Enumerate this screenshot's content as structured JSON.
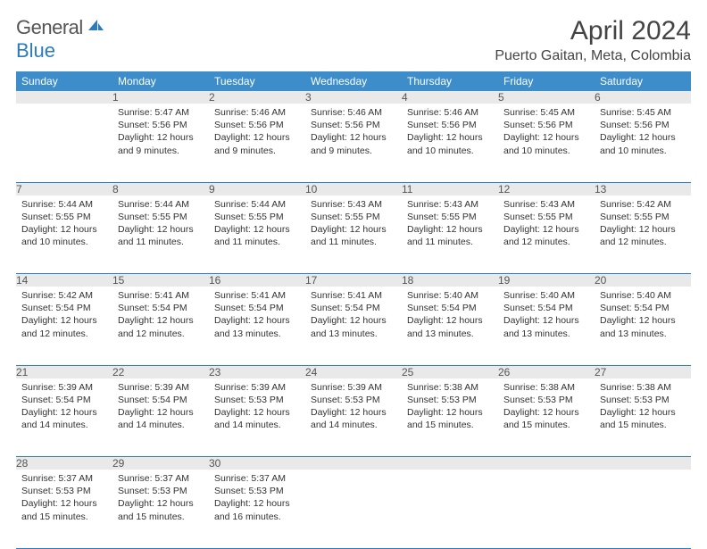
{
  "brand": {
    "name1": "General",
    "name2": "Blue"
  },
  "title": "April 2024",
  "location": "Puerto Gaitan, Meta, Colombia",
  "colors": {
    "header_bg": "#3c8dc9",
    "header_text": "#ffffff",
    "daynum_bg": "#e9e9e9",
    "border": "#2b7bbf",
    "brand_gray": "#555555",
    "brand_blue": "#2b7bbf"
  },
  "weekdays": [
    "Sunday",
    "Monday",
    "Tuesday",
    "Wednesday",
    "Thursday",
    "Friday",
    "Saturday"
  ],
  "weeks": [
    [
      {
        "num": "",
        "sunrise": "",
        "sunset": "",
        "daylight": ""
      },
      {
        "num": "1",
        "sunrise": "Sunrise: 5:47 AM",
        "sunset": "Sunset: 5:56 PM",
        "daylight": "Daylight: 12 hours and 9 minutes."
      },
      {
        "num": "2",
        "sunrise": "Sunrise: 5:46 AM",
        "sunset": "Sunset: 5:56 PM",
        "daylight": "Daylight: 12 hours and 9 minutes."
      },
      {
        "num": "3",
        "sunrise": "Sunrise: 5:46 AM",
        "sunset": "Sunset: 5:56 PM",
        "daylight": "Daylight: 12 hours and 9 minutes."
      },
      {
        "num": "4",
        "sunrise": "Sunrise: 5:46 AM",
        "sunset": "Sunset: 5:56 PM",
        "daylight": "Daylight: 12 hours and 10 minutes."
      },
      {
        "num": "5",
        "sunrise": "Sunrise: 5:45 AM",
        "sunset": "Sunset: 5:56 PM",
        "daylight": "Daylight: 12 hours and 10 minutes."
      },
      {
        "num": "6",
        "sunrise": "Sunrise: 5:45 AM",
        "sunset": "Sunset: 5:56 PM",
        "daylight": "Daylight: 12 hours and 10 minutes."
      }
    ],
    [
      {
        "num": "7",
        "sunrise": "Sunrise: 5:44 AM",
        "sunset": "Sunset: 5:55 PM",
        "daylight": "Daylight: 12 hours and 10 minutes."
      },
      {
        "num": "8",
        "sunrise": "Sunrise: 5:44 AM",
        "sunset": "Sunset: 5:55 PM",
        "daylight": "Daylight: 12 hours and 11 minutes."
      },
      {
        "num": "9",
        "sunrise": "Sunrise: 5:44 AM",
        "sunset": "Sunset: 5:55 PM",
        "daylight": "Daylight: 12 hours and 11 minutes."
      },
      {
        "num": "10",
        "sunrise": "Sunrise: 5:43 AM",
        "sunset": "Sunset: 5:55 PM",
        "daylight": "Daylight: 12 hours and 11 minutes."
      },
      {
        "num": "11",
        "sunrise": "Sunrise: 5:43 AM",
        "sunset": "Sunset: 5:55 PM",
        "daylight": "Daylight: 12 hours and 11 minutes."
      },
      {
        "num": "12",
        "sunrise": "Sunrise: 5:43 AM",
        "sunset": "Sunset: 5:55 PM",
        "daylight": "Daylight: 12 hours and 12 minutes."
      },
      {
        "num": "13",
        "sunrise": "Sunrise: 5:42 AM",
        "sunset": "Sunset: 5:55 PM",
        "daylight": "Daylight: 12 hours and 12 minutes."
      }
    ],
    [
      {
        "num": "14",
        "sunrise": "Sunrise: 5:42 AM",
        "sunset": "Sunset: 5:54 PM",
        "daylight": "Daylight: 12 hours and 12 minutes."
      },
      {
        "num": "15",
        "sunrise": "Sunrise: 5:41 AM",
        "sunset": "Sunset: 5:54 PM",
        "daylight": "Daylight: 12 hours and 12 minutes."
      },
      {
        "num": "16",
        "sunrise": "Sunrise: 5:41 AM",
        "sunset": "Sunset: 5:54 PM",
        "daylight": "Daylight: 12 hours and 13 minutes."
      },
      {
        "num": "17",
        "sunrise": "Sunrise: 5:41 AM",
        "sunset": "Sunset: 5:54 PM",
        "daylight": "Daylight: 12 hours and 13 minutes."
      },
      {
        "num": "18",
        "sunrise": "Sunrise: 5:40 AM",
        "sunset": "Sunset: 5:54 PM",
        "daylight": "Daylight: 12 hours and 13 minutes."
      },
      {
        "num": "19",
        "sunrise": "Sunrise: 5:40 AM",
        "sunset": "Sunset: 5:54 PM",
        "daylight": "Daylight: 12 hours and 13 minutes."
      },
      {
        "num": "20",
        "sunrise": "Sunrise: 5:40 AM",
        "sunset": "Sunset: 5:54 PM",
        "daylight": "Daylight: 12 hours and 13 minutes."
      }
    ],
    [
      {
        "num": "21",
        "sunrise": "Sunrise: 5:39 AM",
        "sunset": "Sunset: 5:54 PM",
        "daylight": "Daylight: 12 hours and 14 minutes."
      },
      {
        "num": "22",
        "sunrise": "Sunrise: 5:39 AM",
        "sunset": "Sunset: 5:54 PM",
        "daylight": "Daylight: 12 hours and 14 minutes."
      },
      {
        "num": "23",
        "sunrise": "Sunrise: 5:39 AM",
        "sunset": "Sunset: 5:53 PM",
        "daylight": "Daylight: 12 hours and 14 minutes."
      },
      {
        "num": "24",
        "sunrise": "Sunrise: 5:39 AM",
        "sunset": "Sunset: 5:53 PM",
        "daylight": "Daylight: 12 hours and 14 minutes."
      },
      {
        "num": "25",
        "sunrise": "Sunrise: 5:38 AM",
        "sunset": "Sunset: 5:53 PM",
        "daylight": "Daylight: 12 hours and 15 minutes."
      },
      {
        "num": "26",
        "sunrise": "Sunrise: 5:38 AM",
        "sunset": "Sunset: 5:53 PM",
        "daylight": "Daylight: 12 hours and 15 minutes."
      },
      {
        "num": "27",
        "sunrise": "Sunrise: 5:38 AM",
        "sunset": "Sunset: 5:53 PM",
        "daylight": "Daylight: 12 hours and 15 minutes."
      }
    ],
    [
      {
        "num": "28",
        "sunrise": "Sunrise: 5:37 AM",
        "sunset": "Sunset: 5:53 PM",
        "daylight": "Daylight: 12 hours and 15 minutes."
      },
      {
        "num": "29",
        "sunrise": "Sunrise: 5:37 AM",
        "sunset": "Sunset: 5:53 PM",
        "daylight": "Daylight: 12 hours and 15 minutes."
      },
      {
        "num": "30",
        "sunrise": "Sunrise: 5:37 AM",
        "sunset": "Sunset: 5:53 PM",
        "daylight": "Daylight: 12 hours and 16 minutes."
      },
      {
        "num": "",
        "sunrise": "",
        "sunset": "",
        "daylight": ""
      },
      {
        "num": "",
        "sunrise": "",
        "sunset": "",
        "daylight": ""
      },
      {
        "num": "",
        "sunrise": "",
        "sunset": "",
        "daylight": ""
      },
      {
        "num": "",
        "sunrise": "",
        "sunset": "",
        "daylight": ""
      }
    ]
  ]
}
